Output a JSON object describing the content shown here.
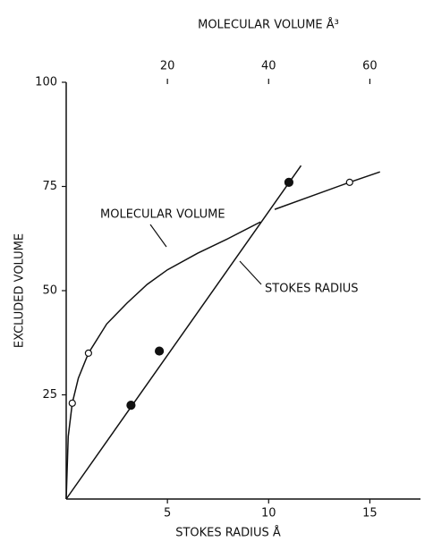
{
  "chart_data": {
    "type": "line",
    "title": "MOLECULAR VOLUME Å³",
    "xlabel": "STOKES RADIUS Å",
    "ylabel": "EXCLUDED VOLUME",
    "xlim": [
      0,
      17.5
    ],
    "xticks": [
      5,
      10,
      15
    ],
    "x2lim": [
      0,
      70
    ],
    "x2ticks": [
      20,
      40,
      60
    ],
    "ylim": [
      0,
      100
    ],
    "yticks": [
      25,
      50,
      75,
      100
    ],
    "color": "#111111",
    "series": [
      {
        "name": "MOLECULAR VOLUME",
        "x": [
          0,
          0.1,
          0.3,
          0.6,
          1.1,
          2,
          3,
          4,
          5,
          6.5,
          8,
          9.6,
          9.9,
          10.3,
          12,
          14,
          15.5
        ],
        "values": [
          0,
          15,
          23,
          29,
          35,
          42,
          47,
          51.5,
          55,
          59,
          62.5,
          66.5,
          null,
          69.5,
          72.5,
          76,
          78.5
        ],
        "points_x": [
          0.3,
          1.1,
          14
        ],
        "points": [
          23,
          35,
          76
        ],
        "marker": "open"
      },
      {
        "name": "STOKES RADIUS",
        "x": [
          0,
          11.6
        ],
        "values": [
          0,
          80
        ],
        "points_x": [
          3.2,
          4.6,
          11
        ],
        "points": [
          22.5,
          35.5,
          76
        ],
        "marker": "filled"
      }
    ]
  }
}
